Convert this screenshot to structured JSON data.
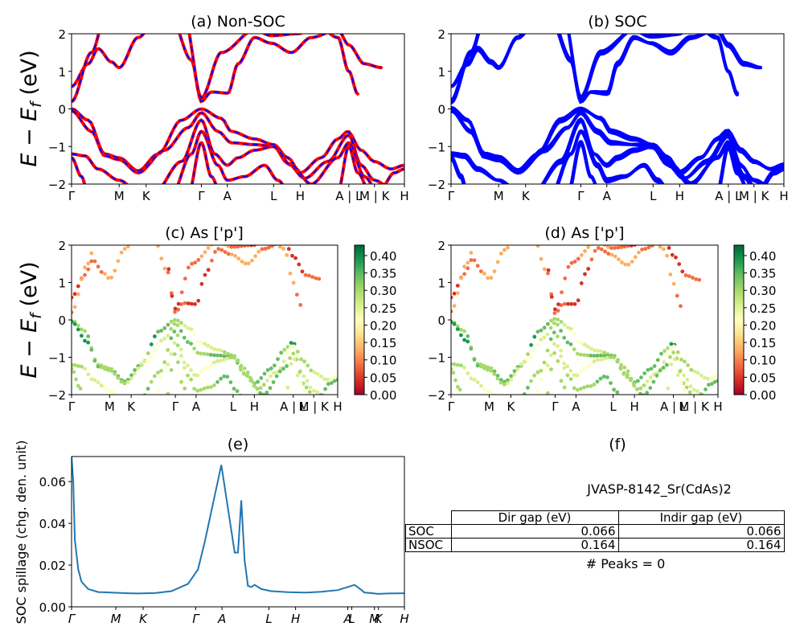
{
  "colors": {
    "nonsoc_main": "#ff0000",
    "nonsoc_dash": "#0000ff",
    "soc": "#0000ff",
    "spillage_line": "#1f77b4",
    "colormap": [
      "#a50026",
      "#d73027",
      "#f46d43",
      "#fdae61",
      "#fee08b",
      "#ffffbf",
      "#d9ef8b",
      "#a6d96a",
      "#66bd63",
      "#1a9850",
      "#006837"
    ]
  },
  "panels": {
    "a_title": "(a) Non-SOC",
    "b_title": "(b) SOC",
    "c_title": "(c)  As ['p']",
    "d_title": "(d) As ['p']",
    "e_title": "(e)",
    "f_title": "(f)"
  },
  "ylabel_band": "E − E_f (eV)",
  "ylabel_spill": "SOC spillage (chg. den. unit)",
  "kpath_labels": [
    "Γ",
    "M",
    "K",
    "Γ",
    "A",
    "L",
    "H",
    "A | L",
    "M | K",
    "H"
  ],
  "kpath_labels_e": [
    "Γ",
    "M",
    "K",
    "Γ",
    "A",
    "L",
    "H",
    "A",
    "L",
    "M",
    "K",
    "H"
  ],
  "colorbar_ticks": [
    "0.00",
    "0.05",
    "0.10",
    "0.15",
    "0.20",
    "0.25",
    "0.30",
    "0.35",
    "0.40"
  ],
  "info": {
    "material": "JVASP-8142_Sr(CdAs)2",
    "table_headers": [
      "Dir gap (eV)",
      "Indir gap (eV)"
    ],
    "table_rows": [
      {
        "label": "SOC",
        "dir": "0.066",
        "indir": "0.066"
      },
      {
        "label": "NSOC",
        "dir": "0.164",
        "indir": "0.164"
      }
    ],
    "peaks": "# Peaks = 0"
  },
  "chart_data": [
    {
      "panel": "a",
      "type": "line",
      "title": "(a) Non-SOC",
      "xlabel": "",
      "ylabel": "E − E_f (eV)",
      "ylim": [
        -2,
        2
      ],
      "yticks": [
        -2,
        -1,
        0,
        1,
        2
      ],
      "xticks": [
        "Γ",
        "M",
        "K",
        "Γ",
        "A",
        "L",
        "H",
        "A | L",
        "M | K",
        "H"
      ],
      "series_description": "Non-SOC band structure, red bands overlaid with blue dashes"
    },
    {
      "panel": "b",
      "type": "line",
      "title": "(b) SOC",
      "ylabel": "",
      "ylim": [
        -2,
        2
      ],
      "yticks": [
        -2,
        -1,
        0,
        1,
        2
      ],
      "xticks": [
        "Γ",
        "M",
        "K",
        "Γ",
        "A",
        "L",
        "H",
        "A | L",
        "M | K",
        "H"
      ]
    },
    {
      "panel": "c",
      "type": "scatter",
      "title": "(c)  As ['p']",
      "ylabel": "E − E_f (eV)",
      "ylim": [
        -2,
        2
      ],
      "yticks": [
        -2,
        -1,
        0,
        1,
        2
      ],
      "colorbar_range": [
        0,
        0.43
      ],
      "xticks": [
        "Γ",
        "M",
        "K",
        "Γ",
        "A",
        "L",
        "H",
        "A | L",
        "M | K",
        "H"
      ]
    },
    {
      "panel": "d",
      "type": "scatter",
      "title": "(d) As ['p']",
      "ylabel": "",
      "ylim": [
        -2,
        2
      ],
      "yticks": [
        -2,
        -1,
        0,
        1,
        2
      ],
      "colorbar_range": [
        0,
        0.43
      ],
      "xticks": [
        "Γ",
        "M",
        "K",
        "Γ",
        "A",
        "L",
        "H",
        "A | L",
        "M | K",
        "H"
      ]
    },
    {
      "panel": "e",
      "type": "line",
      "title": "(e)",
      "ylabel": "SOC spillage (chg. den. unit)",
      "ylim": [
        0,
        0.072
      ],
      "yticks": [
        0.0,
        0.02,
        0.04,
        0.06
      ],
      "xticks": [
        "Γ",
        "M",
        "K",
        "Γ",
        "A",
        "L",
        "H",
        "A",
        "L",
        "M",
        "K",
        "H"
      ],
      "x": [
        0,
        0.5,
        1,
        2,
        3,
        5,
        8,
        12,
        17,
        20,
        25,
        30,
        35,
        38,
        40,
        45,
        49,
        50,
        51,
        52,
        53,
        54,
        55,
        57,
        60,
        65,
        70,
        75,
        80,
        83,
        85,
        87,
        88,
        90,
        92,
        95,
        100
      ],
      "values": [
        0.072,
        0.06,
        0.032,
        0.018,
        0.012,
        0.0085,
        0.0071,
        0.0068,
        0.0065,
        0.0064,
        0.0066,
        0.0075,
        0.011,
        0.018,
        0.031,
        0.068,
        0.026,
        0.026,
        0.051,
        0.022,
        0.01,
        0.0095,
        0.0105,
        0.0085,
        0.0075,
        0.007,
        0.0068,
        0.0072,
        0.008,
        0.0095,
        0.0105,
        0.0082,
        0.0068,
        0.0066,
        0.0062,
        0.0064,
        0.0065
      ]
    }
  ]
}
